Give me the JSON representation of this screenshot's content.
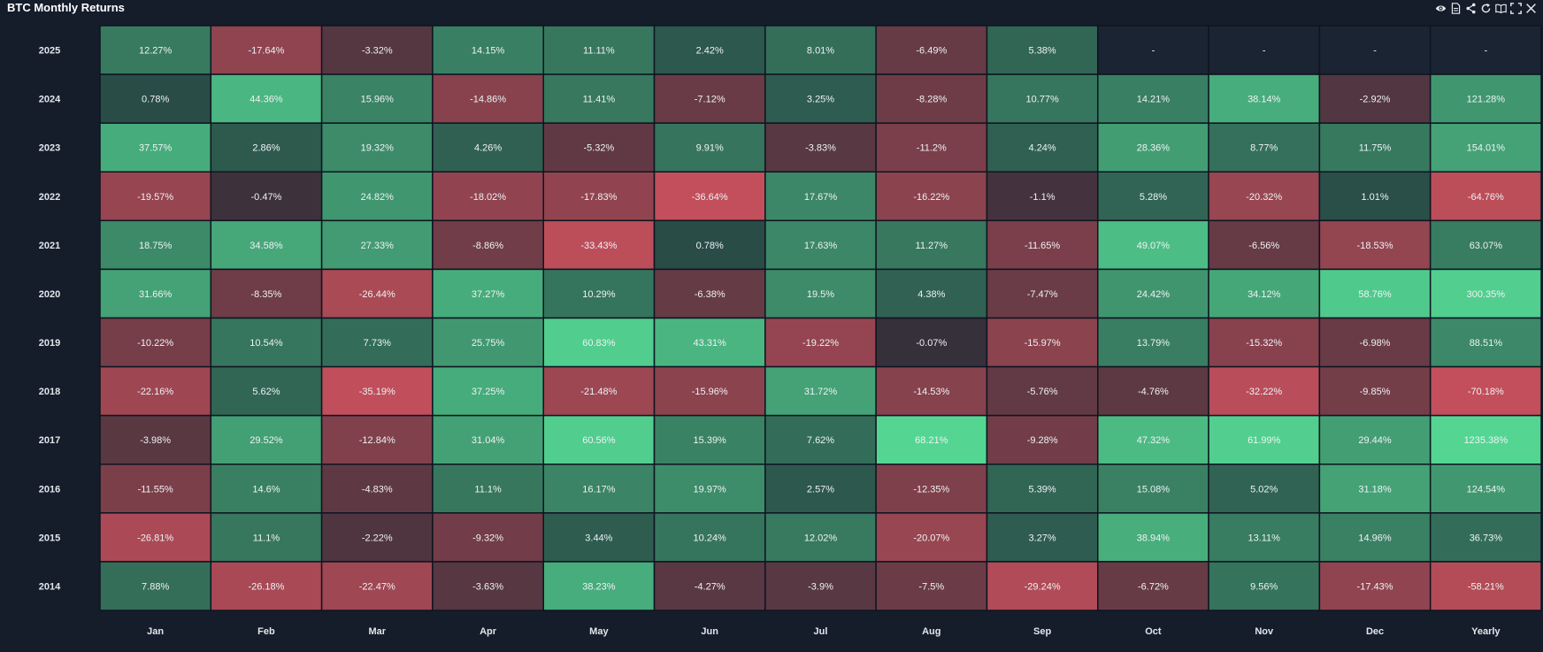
{
  "widget": {
    "title": "BTC Monthly Returns",
    "toolbar_icons": [
      "eye-icon",
      "document-icon",
      "share-icon",
      "refresh-icon",
      "book-icon",
      "expand-icon",
      "close-icon"
    ]
  },
  "colors": {
    "background": "#151d2b",
    "neutral": "#1f2b35",
    "positive": "#54d692",
    "negative": "#c24f5b",
    "empty": "#1b2432",
    "grid": "#0e1520"
  },
  "chart_data": {
    "type": "heatmap",
    "title": "BTC Monthly Returns",
    "x_categories": [
      "Jan",
      "Feb",
      "Mar",
      "Apr",
      "May",
      "Jun",
      "Jul",
      "Aug",
      "Sep",
      "Oct",
      "Nov",
      "Dec",
      "Yearly"
    ],
    "y_categories": [
      "2025",
      "2024",
      "2023",
      "2022",
      "2021",
      "2020",
      "2019",
      "2018",
      "2017",
      "2016",
      "2015",
      "2014"
    ],
    "unit": "%",
    "empty_label": "-",
    "values": [
      [
        "12.27%",
        "-17.64%",
        "-3.32%",
        "14.15%",
        "11.11%",
        "2.42%",
        "8.01%",
        "-6.49%",
        "5.38%",
        "-",
        "-",
        "-",
        "-"
      ],
      [
        "0.78%",
        "44.36%",
        "15.96%",
        "-14.86%",
        "11.41%",
        "-7.12%",
        "3.25%",
        "-8.28%",
        "10.77%",
        "14.21%",
        "38.14%",
        "-2.92%",
        "121.28%"
      ],
      [
        "37.57%",
        "2.86%",
        "19.32%",
        "4.26%",
        "-5.32%",
        "9.91%",
        "-3.83%",
        "-11.2%",
        "4.24%",
        "28.36%",
        "8.77%",
        "11.75%",
        "154.01%"
      ],
      [
        "-19.57%",
        "-0.47%",
        "24.82%",
        "-18.02%",
        "-17.83%",
        "-36.64%",
        "17.67%",
        "-16.22%",
        "-1.1%",
        "5.28%",
        "-20.32%",
        "1.01%",
        "-64.76%"
      ],
      [
        "18.75%",
        "34.58%",
        "27.33%",
        "-8.86%",
        "-33.43%",
        "0.78%",
        "17.63%",
        "11.27%",
        "-11.65%",
        "49.07%",
        "-6.56%",
        "-18.53%",
        "63.07%"
      ],
      [
        "31.66%",
        "-8.35%",
        "-26.44%",
        "37.27%",
        "10.29%",
        "-6.38%",
        "19.5%",
        "4.38%",
        "-7.47%",
        "24.42%",
        "34.12%",
        "58.76%",
        "300.35%"
      ],
      [
        "-10.22%",
        "10.54%",
        "7.73%",
        "25.75%",
        "60.83%",
        "43.31%",
        "-19.22%",
        "-0.07%",
        "-15.97%",
        "13.79%",
        "-15.32%",
        "-6.98%",
        "88.51%"
      ],
      [
        "-22.16%",
        "5.62%",
        "-35.19%",
        "37.25%",
        "-21.48%",
        "-15.96%",
        "31.72%",
        "-14.53%",
        "-5.76%",
        "-4.76%",
        "-32.22%",
        "-9.85%",
        "-70.18%"
      ],
      [
        "-3.98%",
        "29.52%",
        "-12.84%",
        "31.04%",
        "60.56%",
        "15.39%",
        "7.62%",
        "68.21%",
        "-9.28%",
        "47.32%",
        "61.99%",
        "29.44%",
        "1235.38%"
      ],
      [
        "-11.55%",
        "14.6%",
        "-4.83%",
        "11.1%",
        "16.17%",
        "19.97%",
        "2.57%",
        "-12.35%",
        "5.39%",
        "15.08%",
        "5.02%",
        "31.18%",
        "124.54%"
      ],
      [
        "-26.81%",
        "11.1%",
        "-2.22%",
        "-9.32%",
        "3.44%",
        "10.24%",
        "12.02%",
        "-20.07%",
        "3.27%",
        "38.94%",
        "13.11%",
        "14.96%",
        "36.73%"
      ],
      [
        "7.88%",
        "-26.18%",
        "-22.47%",
        "-3.63%",
        "38.23%",
        "-4.27%",
        "-3.9%",
        "-7.5%",
        "-29.24%",
        "-6.72%",
        "9.56%",
        "-17.43%",
        "-58.21%"
      ]
    ]
  }
}
